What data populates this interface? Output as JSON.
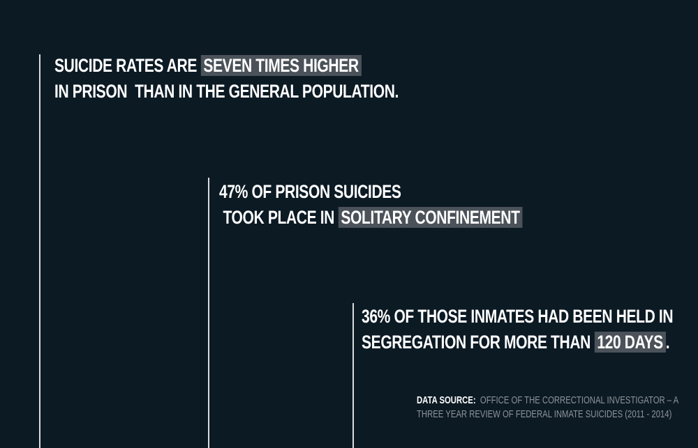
{
  "stats": [
    {
      "line1_pre": "Suicide rates are ",
      "line1_highlight": "seven times higher",
      "line2": "in prison  than in the general population."
    },
    {
      "line1": "47% of prison suicides",
      "line2_pre": " took place in ",
      "line2_highlight": "solitary confinement"
    },
    {
      "line1": "36% of those inmates had been held in",
      "line2_pre": "segregation for more than ",
      "line2_highlight": "120 days",
      "line2_post": "."
    }
  ],
  "source": {
    "label": "Data source:",
    "line1": "Office of the Correctional Investigator – A",
    "line2": "Three year review of federal inmate suicides (2011 - 2014)"
  },
  "colors": {
    "background": "#0c1a24",
    "highlight": "#4b5259",
    "text": "#ffffff",
    "source_text": "#8c9399"
  }
}
